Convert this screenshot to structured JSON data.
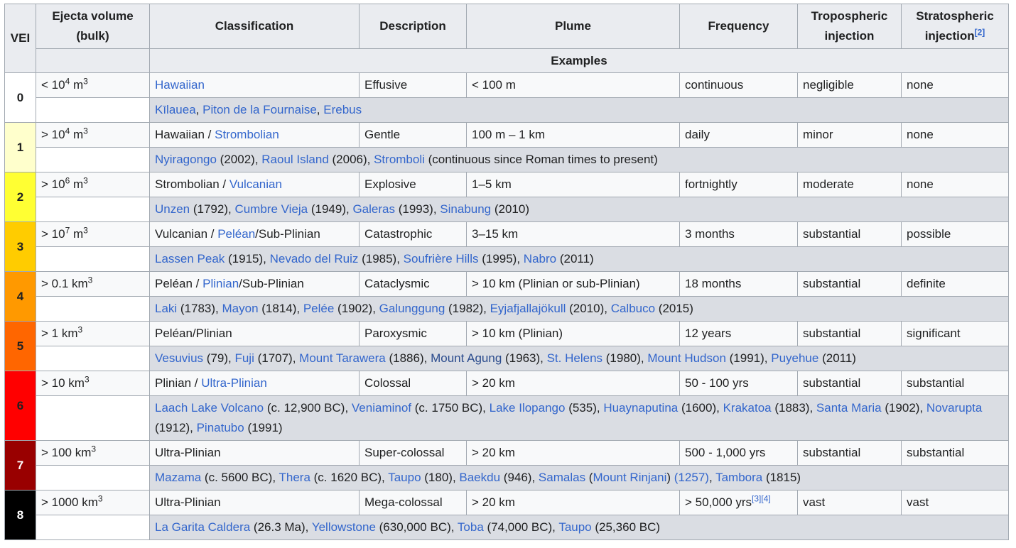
{
  "headers": {
    "vei": "VEI",
    "ejecta_line1": "Ejecta volume",
    "ejecta_line2": "(bulk)",
    "classification": "Classification",
    "description": "Description",
    "plume": "Plume",
    "frequency": "Frequency",
    "trop_line1": "Tropospheric",
    "trop_line2": "injection",
    "strat_line1": "Stratospheric",
    "strat_line2": "injection",
    "strat_ref": "[2]",
    "examples": "Examples"
  },
  "colors": [
    "#ffffff",
    "#ffffcc",
    "#ffff33",
    "#ffcc00",
    "#ff9900",
    "#ff6600",
    "#ff0000",
    "#990000",
    "#000000"
  ],
  "rows": [
    {
      "vei": "0",
      "ejecta_pre": "< 10",
      "ejecta_exp": "4",
      "ejecta_unit": " m",
      "ejecta_unit_exp": "3",
      "class_parts": [
        {
          "t": "Hawaiian",
          "link": true
        }
      ],
      "description": "Effusive",
      "plume": "< 100 m",
      "frequency": "continuous",
      "freq_ref": "",
      "trop": "negligible",
      "strat": "none",
      "examples": [
        {
          "t": "Kīlauea",
          "link": true
        },
        {
          "t": ", ",
          "link": false
        },
        {
          "t": "Piton de la Fournaise",
          "link": true
        },
        {
          "t": ", ",
          "link": false
        },
        {
          "t": "Erebus",
          "link": true
        }
      ]
    },
    {
      "vei": "1",
      "ejecta_pre": "> 10",
      "ejecta_exp": "4",
      "ejecta_unit": " m",
      "ejecta_unit_exp": "3",
      "class_parts": [
        {
          "t": "Hawaiian / ",
          "link": false
        },
        {
          "t": "Strombolian",
          "link": true
        }
      ],
      "description": "Gentle",
      "plume": "100 m – 1 km",
      "frequency": "daily",
      "freq_ref": "",
      "trop": "minor",
      "strat": "none",
      "examples": [
        {
          "t": "Nyiragongo",
          "link": true
        },
        {
          "t": " (2002), ",
          "link": false
        },
        {
          "t": "Raoul Island",
          "link": true
        },
        {
          "t": " (2006), ",
          "link": false
        },
        {
          "t": "Stromboli",
          "link": true
        },
        {
          "t": " (continuous since Roman times to present)",
          "link": false
        }
      ]
    },
    {
      "vei": "2",
      "ejecta_pre": "> 10",
      "ejecta_exp": "6",
      "ejecta_unit": " m",
      "ejecta_unit_exp": "3",
      "class_parts": [
        {
          "t": "Strombolian / ",
          "link": false
        },
        {
          "t": "Vulcanian",
          "link": true
        }
      ],
      "description": "Explosive",
      "plume": "1–5 km",
      "frequency": "fortnightly",
      "freq_ref": "",
      "trop": "moderate",
      "strat": "none",
      "examples": [
        {
          "t": "Unzen",
          "link": true
        },
        {
          "t": " (1792), ",
          "link": false
        },
        {
          "t": "Cumbre Vieja",
          "link": true
        },
        {
          "t": " (1949), ",
          "link": false
        },
        {
          "t": "Galeras",
          "link": true
        },
        {
          "t": " (1993), ",
          "link": false
        },
        {
          "t": "Sinabung",
          "link": true
        },
        {
          "t": " (2010)",
          "link": false
        }
      ]
    },
    {
      "vei": "3",
      "ejecta_pre": "> 10",
      "ejecta_exp": "7",
      "ejecta_unit": " m",
      "ejecta_unit_exp": "3",
      "class_parts": [
        {
          "t": "Vulcanian / ",
          "link": false
        },
        {
          "t": "Peléan",
          "link": true
        },
        {
          "t": "/Sub-Plinian",
          "link": false
        }
      ],
      "description": "Catastrophic",
      "plume": "3–15 km",
      "frequency": "3 months",
      "freq_ref": "",
      "trop": "substantial",
      "strat": "possible",
      "examples": [
        {
          "t": "Lassen Peak",
          "link": true
        },
        {
          "t": " (1915), ",
          "link": false
        },
        {
          "t": "Nevado del Ruiz",
          "link": true
        },
        {
          "t": " (1985), ",
          "link": false
        },
        {
          "t": "Soufrière Hills",
          "link": true
        },
        {
          "t": " (1995), ",
          "link": false
        },
        {
          "t": "Nabro",
          "link": true
        },
        {
          "t": " (2011)",
          "link": false
        }
      ]
    },
    {
      "vei": "4",
      "ejecta_pre": "> 0.1 km",
      "ejecta_exp": "3",
      "ejecta_unit": "",
      "ejecta_unit_exp": "",
      "class_parts": [
        {
          "t": "Peléan / ",
          "link": false
        },
        {
          "t": "Plinian",
          "link": true
        },
        {
          "t": "/Sub-Plinian",
          "link": false
        }
      ],
      "description": "Cataclysmic",
      "plume": "> 10 km (Plinian or sub-Plinian)",
      "frequency": "18 months",
      "freq_ref": "",
      "trop": "substantial",
      "strat": "definite",
      "examples": [
        {
          "t": "Laki",
          "link": true
        },
        {
          "t": " (1783), ",
          "link": false
        },
        {
          "t": "Mayon",
          "link": true
        },
        {
          "t": " (1814), ",
          "link": false
        },
        {
          "t": "Pelée",
          "link": true
        },
        {
          "t": " (1902), ",
          "link": false
        },
        {
          "t": "Galunggung",
          "link": true
        },
        {
          "t": " (1982), ",
          "link": false
        },
        {
          "t": "Eyjafjallajökull",
          "link": true
        },
        {
          "t": " (2010), ",
          "link": false
        },
        {
          "t": "Calbuco",
          "link": true
        },
        {
          "t": " (2015)",
          "link": false
        }
      ]
    },
    {
      "vei": "5",
      "ejecta_pre": "> 1 km",
      "ejecta_exp": "3",
      "ejecta_unit": "",
      "ejecta_unit_exp": "",
      "class_parts": [
        {
          "t": "Peléan/Plinian",
          "link": false
        }
      ],
      "description": "Paroxysmic",
      "plume": "> 10 km (Plinian)",
      "frequency": "12 years",
      "freq_ref": "",
      "trop": "substantial",
      "strat": "significant",
      "examples": [
        {
          "t": "Vesuvius",
          "link": true
        },
        {
          "t": " (79), ",
          "link": false
        },
        {
          "t": "Fuji",
          "link": true
        },
        {
          "t": " (1707), ",
          "link": false
        },
        {
          "t": "Mount Tarawera",
          "link": true
        },
        {
          "t": " (1886), ",
          "link": false
        },
        {
          "t": "Mount Agung",
          "link": true,
          "visited": true
        },
        {
          "t": " (1963), ",
          "link": false
        },
        {
          "t": "St. Helens",
          "link": true
        },
        {
          "t": " (1980), ",
          "link": false
        },
        {
          "t": "Mount Hudson",
          "link": true
        },
        {
          "t": " (1991), ",
          "link": false
        },
        {
          "t": "Puyehue",
          "link": true
        },
        {
          "t": " (2011)",
          "link": false
        }
      ]
    },
    {
      "vei": "6",
      "ejecta_pre": "> 10 km",
      "ejecta_exp": "3",
      "ejecta_unit": "",
      "ejecta_unit_exp": "",
      "class_parts": [
        {
          "t": "Plinian / ",
          "link": false
        },
        {
          "t": "Ultra-Plinian",
          "link": true
        }
      ],
      "description": "Colossal",
      "plume": "> 20 km",
      "frequency": "50 - 100 yrs",
      "freq_ref": "",
      "trop": "substantial",
      "strat": "substantial",
      "tall": true,
      "examples": [
        {
          "t": "Laach Lake Volcano",
          "link": true
        },
        {
          "t": " (c. 12,900 BC), ",
          "link": false
        },
        {
          "t": "Veniaminof",
          "link": true
        },
        {
          "t": " (c. 1750 BC), ",
          "link": false
        },
        {
          "t": "Lake Ilopango",
          "link": true
        },
        {
          "t": " (535), ",
          "link": false
        },
        {
          "t": "Huaynaputina",
          "link": true
        },
        {
          "t": " (1600), ",
          "link": false
        },
        {
          "t": "Krakatoa",
          "link": true
        },
        {
          "t": " (1883), ",
          "link": false
        },
        {
          "t": "Santa Maria",
          "link": true
        },
        {
          "t": " (1902), ",
          "link": false
        },
        {
          "t": "Novarupta",
          "link": true
        },
        {
          "t": " (1912), ",
          "link": false
        },
        {
          "t": "Pinatubo",
          "link": true
        },
        {
          "t": " (1991)",
          "link": false
        }
      ]
    },
    {
      "vei": "7",
      "ejecta_pre": "> 100 km",
      "ejecta_exp": "3",
      "ejecta_unit": "",
      "ejecta_unit_exp": "",
      "class_parts": [
        {
          "t": "Ultra-Plinian",
          "link": false
        }
      ],
      "description": "Super-colossal",
      "plume": "> 20 km",
      "frequency": "500 - 1,000 yrs",
      "freq_ref": "",
      "trop": "substantial",
      "strat": "substantial",
      "examples": [
        {
          "t": "Mazama",
          "link": true
        },
        {
          "t": " (c. 5600 BC), ",
          "link": false
        },
        {
          "t": "Thera",
          "link": true
        },
        {
          "t": " (c. 1620 BC), ",
          "link": false
        },
        {
          "t": "Taupo",
          "link": true
        },
        {
          "t": " (180), ",
          "link": false
        },
        {
          "t": "Baekdu",
          "link": true
        },
        {
          "t": " (946), ",
          "link": false
        },
        {
          "t": "Samalas",
          "link": true
        },
        {
          "t": " (",
          "link": false
        },
        {
          "t": "Mount Rinjani",
          "link": true
        },
        {
          "t": ") ",
          "link": false
        },
        {
          "t": "(1257)",
          "link": true
        },
        {
          "t": ", ",
          "link": false
        },
        {
          "t": "Tambora",
          "link": true
        },
        {
          "t": " (1815)",
          "link": false
        }
      ]
    },
    {
      "vei": "8",
      "ejecta_pre": "> 1000 km",
      "ejecta_exp": "3",
      "ejecta_unit": "",
      "ejecta_unit_exp": "",
      "class_parts": [
        {
          "t": "Ultra-Plinian",
          "link": false
        }
      ],
      "description": "Mega-colossal",
      "plume": "> 20 km",
      "frequency": "> 50,000 yrs",
      "freq_ref": "[3][4]",
      "trop": "vast",
      "strat": "vast",
      "examples": [
        {
          "t": "La Garita Caldera",
          "link": true
        },
        {
          "t": " (26.3 Ma), ",
          "link": false
        },
        {
          "t": "Yellowstone",
          "link": true
        },
        {
          "t": " (630,000 BC), ",
          "link": false
        },
        {
          "t": "Toba",
          "link": true
        },
        {
          "t": " (74,000 BC), ",
          "link": false
        },
        {
          "t": "Taupo",
          "link": true
        },
        {
          "t": " (25,360 BC)",
          "link": false
        }
      ]
    }
  ]
}
